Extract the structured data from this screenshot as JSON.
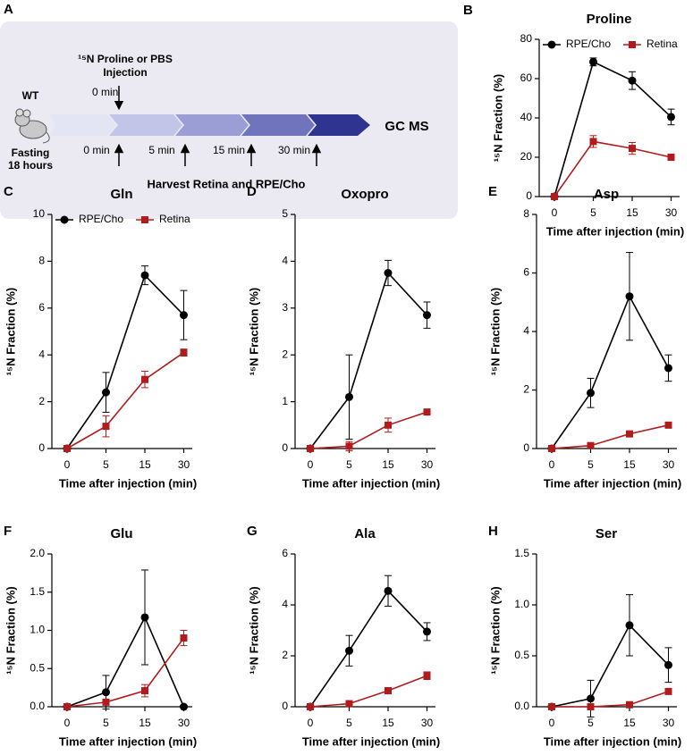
{
  "panel_a": {
    "label": "A",
    "wt": "WT",
    "fasting": [
      "Fasting",
      "18 hours"
    ],
    "injection": [
      "¹⁵N Proline or PBS",
      "Injection"
    ],
    "injection_time": "0 min",
    "harvest_times": [
      "0 min",
      "5 min",
      "15 min",
      "30 min"
    ],
    "output": "GC MS",
    "harvest": "Harvest Retina and RPE/Cho"
  },
  "chart_data": [
    {
      "type": "line",
      "panel": "B",
      "title": "Proline",
      "x_label": "Time after injection (min)",
      "y_label": "¹⁵N Fraction (%)",
      "categories": [
        "0",
        "5",
        "15",
        "30"
      ],
      "ylim": [
        0,
        80
      ],
      "yticks": [
        0,
        20,
        40,
        60,
        80
      ],
      "legend": true,
      "series": [
        {
          "name": "RPE/Cho",
          "color": "#000000",
          "marker": "circle",
          "values": [
            0,
            68.5,
            59,
            40.5
          ],
          "errors": [
            0,
            2,
            4.5,
            4
          ]
        },
        {
          "name": "Retina",
          "color": "#b01c1c",
          "marker": "square",
          "values": [
            0,
            28,
            24.5,
            20
          ],
          "errors": [
            0,
            3,
            3,
            1
          ]
        }
      ]
    },
    {
      "type": "line",
      "panel": "C",
      "title": "Gln",
      "x_label": "Time after injection (min)",
      "y_label": "¹⁵N Fraction (%)",
      "categories": [
        "0",
        "5",
        "15",
        "30"
      ],
      "ylim": [
        0,
        10
      ],
      "yticks": [
        0,
        2,
        4,
        6,
        8,
        10
      ],
      "legend": true,
      "series": [
        {
          "name": "RPE/Cho",
          "color": "#000000",
          "marker": "circle",
          "values": [
            0,
            2.4,
            7.4,
            5.7
          ],
          "errors": [
            0,
            0.85,
            0.4,
            1.05
          ]
        },
        {
          "name": "Retina",
          "color": "#b01c1c",
          "marker": "square",
          "values": [
            0,
            0.95,
            2.95,
            4.1
          ],
          "errors": [
            0,
            0.45,
            0.35,
            0.15
          ]
        }
      ]
    },
    {
      "type": "line",
      "panel": "D",
      "title": "Oxopro",
      "x_label": "Time after injection (min)",
      "y_label": "¹⁵N Fraction (%)",
      "categories": [
        "0",
        "5",
        "15",
        "30"
      ],
      "ylim": [
        0,
        5
      ],
      "yticks": [
        0,
        1,
        2,
        3,
        4,
        5
      ],
      "legend": false,
      "series": [
        {
          "name": "RPE/Cho",
          "color": "#000000",
          "marker": "circle",
          "values": [
            0,
            1.1,
            3.75,
            2.85
          ],
          "errors": [
            0,
            0.9,
            0.27,
            0.28
          ]
        },
        {
          "name": "Retina",
          "color": "#b01c1c",
          "marker": "square",
          "values": [
            0,
            0.05,
            0.5,
            0.78
          ],
          "errors": [
            0,
            0.1,
            0.15,
            0.05
          ]
        }
      ]
    },
    {
      "type": "line",
      "panel": "E",
      "title": "Asp",
      "x_label": "Time after injection (min)",
      "y_label": "¹⁵N Fraction (%)",
      "categories": [
        "0",
        "5",
        "15",
        "30"
      ],
      "ylim": [
        0,
        8
      ],
      "yticks": [
        0,
        2,
        4,
        6,
        8
      ],
      "legend": false,
      "series": [
        {
          "name": "RPE/Cho",
          "color": "#000000",
          "marker": "circle",
          "values": [
            0,
            1.9,
            5.2,
            2.75
          ],
          "errors": [
            0,
            0.5,
            1.5,
            0.45
          ]
        },
        {
          "name": "Retina",
          "color": "#b01c1c",
          "marker": "square",
          "values": [
            0,
            0.1,
            0.5,
            0.8
          ],
          "errors": [
            0,
            0.05,
            0.08,
            0.08
          ]
        }
      ]
    },
    {
      "type": "line",
      "panel": "F",
      "title": "Glu",
      "x_label": "Time after injection (min)",
      "y_label": "¹⁵N Fraction (%)",
      "categories": [
        "0",
        "5",
        "15",
        "30"
      ],
      "ylim": [
        0,
        2
      ],
      "yticks": [
        {
          "value": 0,
          "label": "0.0"
        },
        0.5,
        {
          "value": 1,
          "label": "1.0"
        },
        1.5,
        {
          "value": 2,
          "label": "2.0"
        }
      ],
      "legend": false,
      "series": [
        {
          "name": "RPE/Cho",
          "color": "#000000",
          "marker": "circle",
          "values": [
            0,
            0.19,
            1.17,
            0
          ],
          "errors": [
            0,
            0.22,
            0.62,
            0
          ]
        },
        {
          "name": "Retina",
          "color": "#b01c1c",
          "marker": "square",
          "values": [
            0,
            0.06,
            0.21,
            0.9
          ],
          "errors": [
            0,
            0.03,
            0.08,
            0.1
          ]
        }
      ]
    },
    {
      "type": "line",
      "panel": "G",
      "title": "Ala",
      "x_label": "Time after injection (min)",
      "y_label": "¹⁵N Fraction (%)",
      "categories": [
        "0",
        "5",
        "15",
        "30"
      ],
      "ylim": [
        0,
        6
      ],
      "yticks": [
        0,
        2,
        4,
        6
      ],
      "legend": false,
      "series": [
        {
          "name": "RPE/Cho",
          "color": "#000000",
          "marker": "circle",
          "values": [
            0,
            2.2,
            4.55,
            2.95
          ],
          "errors": [
            0,
            0.6,
            0.6,
            0.35
          ]
        },
        {
          "name": "Retina",
          "color": "#b01c1c",
          "marker": "square",
          "values": [
            0,
            0.12,
            0.63,
            1.22
          ],
          "errors": [
            0,
            0.05,
            0.05,
            0.15
          ]
        }
      ]
    },
    {
      "type": "line",
      "panel": "H",
      "title": "Ser",
      "x_label": "Time after injection (min)",
      "y_label": "¹⁵N Fraction (%)",
      "categories": [
        "0",
        "5",
        "15",
        "30"
      ],
      "ylim": [
        0,
        1.5
      ],
      "yticks": [
        {
          "value": 0,
          "label": "0.0"
        },
        0.5,
        {
          "value": 1,
          "label": "1.0"
        },
        1.5
      ],
      "legend": false,
      "series": [
        {
          "name": "RPE/Cho",
          "color": "#000000",
          "marker": "circle",
          "values": [
            0,
            0.08,
            0.8,
            0.41
          ],
          "errors": [
            0,
            0.18,
            0.3,
            0.17
          ]
        },
        {
          "name": "Retina",
          "color": "#b01c1c",
          "marker": "square",
          "values": [
            0,
            0,
            0.02,
            0.15
          ],
          "errors": [
            0,
            0,
            0.01,
            0.02
          ]
        }
      ]
    }
  ]
}
